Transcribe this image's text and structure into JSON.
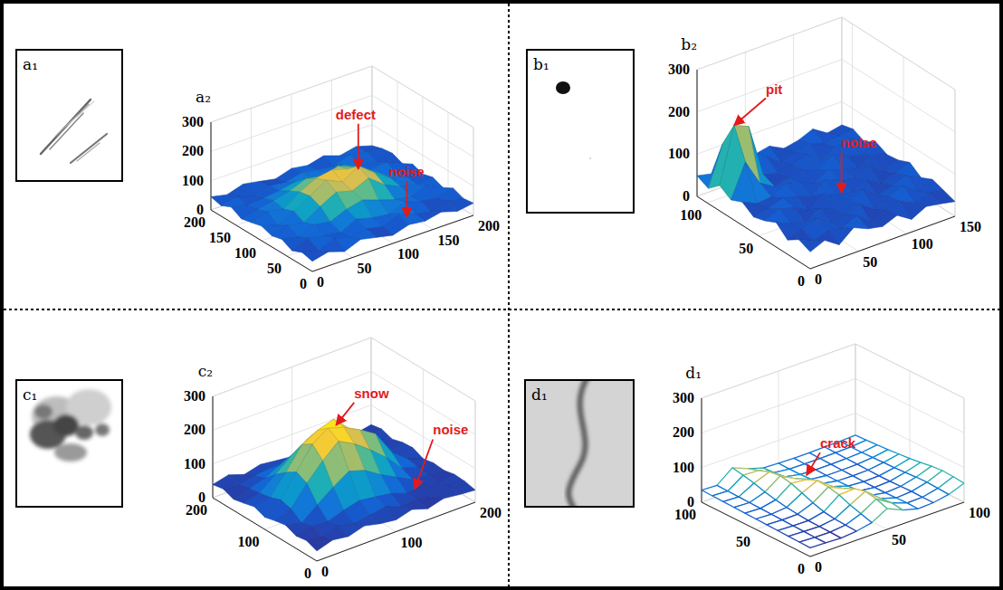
{
  "chart_data": [
    {
      "type": "surface",
      "image_label": "a₁",
      "panel_label": "a₂",
      "xlim": [
        0,
        200
      ],
      "ylim": [
        0,
        200
      ],
      "zlim": [
        0,
        300
      ],
      "xticks": [
        0,
        50,
        100,
        150,
        200
      ],
      "yticks": [
        0,
        50,
        100,
        150,
        200
      ],
      "zticks": [
        0,
        100,
        200,
        300
      ],
      "grid": true,
      "x": [
        0,
        20,
        40,
        60,
        80,
        100,
        120,
        140,
        160,
        180,
        200
      ],
      "y": [
        0,
        20,
        40,
        60,
        80,
        100,
        120,
        140,
        160,
        180,
        200
      ],
      "z": [
        [
          35,
          48,
          30,
          52,
          40,
          28,
          45,
          38,
          50,
          33,
          42
        ],
        [
          44,
          30,
          55,
          38,
          47,
          36,
          58,
          41,
          29,
          46,
          37
        ],
        [
          29,
          52,
          41,
          33,
          60,
          45,
          38,
          62,
          44,
          35,
          51
        ],
        [
          47,
          36,
          58,
          49,
          72,
          85,
          66,
          48,
          39,
          57,
          32
        ],
        [
          38,
          55,
          44,
          80,
          110,
          95,
          120,
          78,
          52,
          40,
          46
        ],
        [
          50,
          34,
          62,
          95,
          130,
          105,
          140,
          98,
          60,
          45,
          36
        ],
        [
          41,
          58,
          48,
          88,
          115,
          125,
          108,
          90,
          55,
          38,
          49
        ],
        [
          33,
          45,
          56,
          70,
          92,
          80,
          98,
          75,
          47,
          53,
          30
        ],
        [
          52,
          39,
          43,
          50,
          61,
          57,
          49,
          63,
          40,
          34,
          44
        ],
        [
          36,
          48,
          31,
          45,
          38,
          52,
          42,
          35,
          56,
          47,
          39
        ],
        [
          45,
          33,
          50,
          40,
          29,
          46,
          37,
          51,
          32,
          44,
          28
        ]
      ],
      "annotations": [
        {
          "text": "defect",
          "x": 120,
          "y": 100,
          "z": 130
        },
        {
          "text": "noise",
          "x": 130,
          "y": 20,
          "z": 40
        }
      ]
    },
    {
      "type": "surface",
      "image_label": "b₁",
      "panel_label": "b₂",
      "xlim": [
        0,
        150
      ],
      "ylim": [
        0,
        110
      ],
      "zlim": [
        0,
        300
      ],
      "xticks": [
        0,
        50,
        100,
        150
      ],
      "yticks": [
        0,
        50,
        100
      ],
      "zticks": [
        0,
        100,
        200,
        300
      ],
      "grid": true,
      "x": [
        0,
        15,
        30,
        45,
        60,
        75,
        90,
        105,
        120,
        135,
        150
      ],
      "y": [
        0,
        11,
        22,
        33,
        44,
        55,
        66,
        77,
        88,
        99,
        110
      ],
      "z": [
        [
          40,
          55,
          32,
          60,
          45,
          38,
          52,
          30,
          48,
          42,
          35
        ],
        [
          52,
          36,
          48,
          41,
          58,
          33,
          46,
          55,
          39,
          50,
          44
        ],
        [
          34,
          47,
          60,
          38,
          44,
          56,
          31,
          49,
          62,
          37,
          53
        ],
        [
          58,
          42,
          35,
          54,
          39,
          47,
          61,
          36,
          45,
          57,
          40
        ],
        [
          45,
          61,
          50,
          33,
          57,
          42,
          38,
          53,
          34,
          46,
          59
        ],
        [
          37,
          44,
          56,
          48,
          35,
          63,
          49,
          41,
          58,
          32,
          47
        ],
        [
          55,
          39,
          42,
          60,
          51,
          36,
          57,
          45,
          38,
          54,
          43
        ],
        [
          43,
          120,
          58,
          37,
          46,
          52,
          40,
          62,
          47,
          35,
          56
        ],
        [
          60,
          190,
          175,
          49,
          38,
          44,
          58,
          33,
          51,
          60,
          39
        ],
        [
          36,
          130,
          48,
          56,
          62,
          35,
          47,
          55,
          42,
          48,
          52
        ],
        [
          49,
          41,
          37,
          44,
          50,
          57,
          39,
          46,
          60,
          38,
          45
        ]
      ],
      "annotations": [
        {
          "text": "pit",
          "x": 15,
          "y": 88,
          "z": 190
        },
        {
          "text": "noise",
          "x": 75,
          "y": 40,
          "z": 55
        }
      ]
    },
    {
      "type": "surface",
      "image_label": "c₁",
      "panel_label": "c₂",
      "xlim": [
        0,
        200
      ],
      "ylim": [
        0,
        200
      ],
      "zlim": [
        0,
        300
      ],
      "xticks": [
        0,
        100,
        200
      ],
      "yticks": [
        0,
        100,
        200
      ],
      "zticks": [
        0,
        100,
        200,
        300
      ],
      "grid": true,
      "x": [
        0,
        20,
        40,
        60,
        80,
        100,
        120,
        140,
        160,
        180,
        200
      ],
      "y": [
        0,
        20,
        40,
        60,
        80,
        100,
        120,
        140,
        160,
        180,
        200
      ],
      "z": [
        [
          30,
          45,
          38,
          52,
          41,
          35,
          48,
          33,
          46,
          40,
          36
        ],
        [
          42,
          35,
          50,
          40,
          47,
          55,
          38,
          44,
          31,
          49,
          43
        ],
        [
          37,
          48,
          44,
          60,
          72,
          65,
          58,
          41,
          50,
          36,
          45
        ],
        [
          50,
          39,
          75,
          110,
          140,
          125,
          95,
          70,
          45,
          42,
          38
        ],
        [
          44,
          62,
          120,
          170,
          210,
          185,
          150,
          110,
          60,
          47,
          41
        ],
        [
          36,
          70,
          135,
          200,
          230,
          215,
          190,
          160,
          90,
          52,
          35
        ],
        [
          48,
          58,
          115,
          180,
          205,
          220,
          175,
          140,
          80,
          44,
          49
        ],
        [
          40,
          52,
          90,
          130,
          160,
          150,
          120,
          95,
          55,
          38,
          46
        ],
        [
          33,
          47,
          60,
          85,
          95,
          88,
          70,
          58,
          42,
          51,
          37
        ],
        [
          45,
          38,
          49,
          54,
          47,
          60,
          43,
          50,
          36,
          41,
          48
        ],
        [
          39,
          50,
          34,
          46,
          40,
          35,
          52,
          38,
          47,
          33,
          42
        ]
      ],
      "annotations": [
        {
          "text": "snow",
          "x": 90,
          "y": 100,
          "z": 230
        },
        {
          "text": "noise",
          "x": 150,
          "y": 40,
          "z": 45
        }
      ]
    },
    {
      "type": "mesh",
      "image_label": "d₁",
      "panel_label": "d₁",
      "xlim": [
        0,
        100
      ],
      "ylim": [
        0,
        100
      ],
      "zlim": [
        0,
        300
      ],
      "xticks": [
        0,
        50,
        100
      ],
      "yticks": [
        0,
        50,
        100
      ],
      "zticks": [
        0,
        100,
        200,
        300
      ],
      "grid": true,
      "x": [
        0,
        10,
        20,
        30,
        40,
        50,
        60,
        70,
        80,
        90,
        100
      ],
      "y": [
        0,
        10,
        20,
        30,
        40,
        50,
        60,
        70,
        80,
        90,
        100
      ],
      "z": [
        [
          25,
          24,
          22,
          26,
          35,
          60,
          40,
          28,
          30,
          38,
          55
        ],
        [
          26,
          24,
          23,
          28,
          45,
          72,
          45,
          29,
          30,
          40,
          58
        ],
        [
          27,
          25,
          24,
          30,
          55,
          78,
          42,
          28,
          31,
          42,
          60
        ],
        [
          28,
          26,
          25,
          35,
          68,
          70,
          35,
          27,
          30,
          41,
          57
        ],
        [
          29,
          27,
          28,
          45,
          75,
          55,
          32,
          27,
          29,
          39,
          52
        ],
        [
          30,
          28,
          32,
          58,
          78,
          45,
          31,
          28,
          29,
          37,
          48
        ],
        [
          31,
          29,
          38,
          70,
          65,
          38,
          30,
          29,
          30,
          36,
          45
        ],
        [
          32,
          30,
          45,
          76,
          52,
          35,
          30,
          30,
          31,
          35,
          42
        ],
        [
          33,
          31,
          55,
          72,
          42,
          33,
          31,
          31,
          32,
          34,
          40
        ],
        [
          34,
          32,
          62,
          60,
          38,
          33,
          32,
          32,
          33,
          34,
          38
        ],
        [
          35,
          33,
          68,
          50,
          36,
          34,
          33,
          33,
          34,
          35,
          37
        ]
      ],
      "annotations": [
        {
          "text": "crack",
          "x": 40,
          "y": 60,
          "z": 78
        }
      ]
    }
  ]
}
